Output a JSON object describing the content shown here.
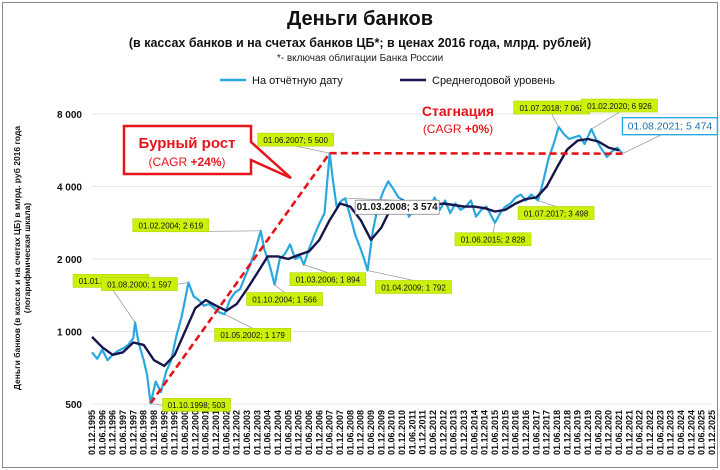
{
  "title": "Деньги банков",
  "subtitle": "(в кассах банков и на счетах банков ЦБ*; в ценах 2016 года, млрд. рублей)",
  "subnote": "*- включая облигации Банка России",
  "ylabel_lines": [
    "Деньги банков (в кассах и на счетах ЦБ) в млрд. руб 2016 года",
    "(логарифмическая шкала)"
  ],
  "legend": {
    "series1": "На отчётную дату",
    "series2": "Среднегодовой уровень"
  },
  "text_boxes": {
    "boom_title": "Бурный рост",
    "boom_cagr_pre": "(CAGR ",
    "boom_cagr_val": "+24%",
    "boom_cagr_post": ")",
    "stag_title": "Стагнация",
    "stag_cagr_pre": "(CAGR ",
    "stag_cagr_val": "+0%",
    "stag_cagr_post": ")"
  },
  "colors": {
    "series1": "#29a8e0",
    "series2": "#16164d",
    "trend": "#e8141b",
    "label_fill": "#ccf00a"
  },
  "chart_data": {
    "type": "line",
    "yscale": "log",
    "ylim": [
      500,
      9500
    ],
    "yticks": [
      500,
      1000,
      2000,
      4000,
      8000
    ],
    "ytick_labels": [
      "500",
      "1 000",
      "2 000",
      "4 000",
      "8 000"
    ],
    "xlim": [
      "1995-12-01",
      "2025-12-01"
    ],
    "xtick_labels": [
      "01.12.1995",
      "01.06.1996",
      "01.12.1996",
      "01.06.1997",
      "01.12.1997",
      "01.06.1998",
      "01.12.1998",
      "01.06.1999",
      "01.12.1999",
      "01.06.2000",
      "01.12.2000",
      "01.06.2001",
      "01.12.2001",
      "01.06.2002",
      "01.12.2002",
      "01.06.2003",
      "01.12.2003",
      "01.06.2004",
      "01.12.2004",
      "01.06.2005",
      "01.12.2005",
      "01.06.2006",
      "01.12.2006",
      "01.06.2007",
      "01.12.2007",
      "01.06.2008",
      "01.12.2008",
      "01.06.2009",
      "01.12.2009",
      "01.06.2010",
      "01.12.2010",
      "01.06.2011",
      "01.12.2011",
      "01.06.2012",
      "01.12.2012",
      "01.06.2013",
      "01.12.2013",
      "01.06.2014",
      "01.12.2014",
      "01.06.2015",
      "01.12.2015",
      "01.06.2016",
      "01.12.2016",
      "01.06.2017",
      "01.12.2017",
      "01.06.2018",
      "01.12.2018",
      "01.06.2019",
      "01.12.2019",
      "01.06.2020",
      "01.12.2020",
      "01.06.2021",
      "01.12.2021",
      "01.06.2022",
      "01.12.2022",
      "01.06.2023",
      "01.12.2023",
      "01.06.2024",
      "01.12.2024",
      "01.06.2025",
      "01.12.2025"
    ],
    "series": [
      {
        "name": "На отчётную дату",
        "points": [
          [
            "1995-12-01",
            820
          ],
          [
            "1996-03-01",
            770
          ],
          [
            "1996-06-01",
            840
          ],
          [
            "1996-09-01",
            760
          ],
          [
            "1996-12-01",
            800
          ],
          [
            "1997-03-01",
            830
          ],
          [
            "1997-06-01",
            850
          ],
          [
            "1997-09-01",
            880
          ],
          [
            "1997-12-01",
            940
          ],
          [
            "1998-01-01",
            1091
          ],
          [
            "1998-03-01",
            900
          ],
          [
            "1998-06-01",
            760
          ],
          [
            "1998-08-01",
            660
          ],
          [
            "1998-10-01",
            503
          ],
          [
            "1999-01-01",
            620
          ],
          [
            "1999-04-01",
            560
          ],
          [
            "1999-07-01",
            680
          ],
          [
            "1999-10-01",
            760
          ],
          [
            "2000-01-01",
            960
          ],
          [
            "2000-04-01",
            1150
          ],
          [
            "2000-06-01",
            1350
          ],
          [
            "2000-08-01",
            1597
          ],
          [
            "2000-11-01",
            1400
          ],
          [
            "2001-02-01",
            1350
          ],
          [
            "2001-05-01",
            1280
          ],
          [
            "2001-08-01",
            1300
          ],
          [
            "2001-11-01",
            1250
          ],
          [
            "2002-02-01",
            1200
          ],
          [
            "2002-05-01",
            1179
          ],
          [
            "2002-08-01",
            1350
          ],
          [
            "2002-11-01",
            1450
          ],
          [
            "2003-02-01",
            1500
          ],
          [
            "2003-05-01",
            1700
          ],
          [
            "2003-08-01",
            1900
          ],
          [
            "2003-11-01",
            2200
          ],
          [
            "2004-02-01",
            2619
          ],
          [
            "2004-04-01",
            2200
          ],
          [
            "2004-07-01",
            1900
          ],
          [
            "2004-10-01",
            1566
          ],
          [
            "2005-01-01",
            2000
          ],
          [
            "2005-04-01",
            2100
          ],
          [
            "2005-07-01",
            2300
          ],
          [
            "2005-10-01",
            2000
          ],
          [
            "2006-01-01",
            2050
          ],
          [
            "2006-03-01",
            1894
          ],
          [
            "2006-06-01",
            2200
          ],
          [
            "2006-09-01",
            2500
          ],
          [
            "2006-12-01",
            2800
          ],
          [
            "2007-03-01",
            3100
          ],
          [
            "2007-06-01",
            5500
          ],
          [
            "2007-08-01",
            4200
          ],
          [
            "2007-10-01",
            3300
          ],
          [
            "2008-01-01",
            3500
          ],
          [
            "2008-03-01",
            3574
          ],
          [
            "2008-06-01",
            3000
          ],
          [
            "2008-09-01",
            2500
          ],
          [
            "2008-12-01",
            2200
          ],
          [
            "2009-02-01",
            2000
          ],
          [
            "2009-04-01",
            1792
          ],
          [
            "2009-07-01",
            2600
          ],
          [
            "2009-10-01",
            3300
          ],
          [
            "2010-01-01",
            3800
          ],
          [
            "2010-04-01",
            4200
          ],
          [
            "2010-07-01",
            3900
          ],
          [
            "2010-10-01",
            3600
          ],
          [
            "2011-01-01",
            3500
          ],
          [
            "2011-04-01",
            3000
          ],
          [
            "2011-07-01",
            3200
          ],
          [
            "2011-10-01",
            3400
          ],
          [
            "2012-01-01",
            3100
          ],
          [
            "2012-04-01",
            3300
          ],
          [
            "2012-07-01",
            3600
          ],
          [
            "2012-10-01",
            3200
          ],
          [
            "2013-01-01",
            3500
          ],
          [
            "2013-04-01",
            3100
          ],
          [
            "2013-07-01",
            3400
          ],
          [
            "2013-10-01",
            3200
          ],
          [
            "2014-01-01",
            3300
          ],
          [
            "2014-04-01",
            3500
          ],
          [
            "2014-07-01",
            3000
          ],
          [
            "2014-10-01",
            3200
          ],
          [
            "2015-01-01",
            3300
          ],
          [
            "2015-06-01",
            2828
          ],
          [
            "2015-09-01",
            3100
          ],
          [
            "2015-12-01",
            3300
          ],
          [
            "2016-03-01",
            3400
          ],
          [
            "2016-06-01",
            3600
          ],
          [
            "2016-09-01",
            3700
          ],
          [
            "2016-12-01",
            3500
          ],
          [
            "2017-03-01",
            3700
          ],
          [
            "2017-07-01",
            3498
          ],
          [
            "2017-10-01",
            4200
          ],
          [
            "2018-01-01",
            5200
          ],
          [
            "2018-04-01",
            6000
          ],
          [
            "2018-07-01",
            7062
          ],
          [
            "2018-10-01",
            6600
          ],
          [
            "2019-01-01",
            6300
          ],
          [
            "2019-04-01",
            6400
          ],
          [
            "2019-07-01",
            6500
          ],
          [
            "2019-10-01",
            6000
          ],
          [
            "2020-02-01",
            6926
          ],
          [
            "2020-05-01",
            6200
          ],
          [
            "2020-08-01",
            5700
          ],
          [
            "2020-11-01",
            5300
          ],
          [
            "2021-02-01",
            5600
          ],
          [
            "2021-05-01",
            5800
          ],
          [
            "2021-08-01",
            5474
          ]
        ]
      },
      {
        "name": "Среднегодовой уровень",
        "points": [
          [
            "1995-12-01",
            950
          ],
          [
            "1996-06-01",
            860
          ],
          [
            "1996-12-01",
            800
          ],
          [
            "1997-06-01",
            820
          ],
          [
            "1997-12-01",
            900
          ],
          [
            "1998-06-01",
            880
          ],
          [
            "1998-12-01",
            760
          ],
          [
            "1999-06-01",
            720
          ],
          [
            "1999-12-01",
            800
          ],
          [
            "2000-06-01",
            1000
          ],
          [
            "2000-12-01",
            1250
          ],
          [
            "2001-06-01",
            1350
          ],
          [
            "2001-12-01",
            1280
          ],
          [
            "2002-06-01",
            1220
          ],
          [
            "2002-12-01",
            1300
          ],
          [
            "2003-06-01",
            1500
          ],
          [
            "2003-12-01",
            1750
          ],
          [
            "2004-06-01",
            2050
          ],
          [
            "2004-12-01",
            2050
          ],
          [
            "2005-06-01",
            2000
          ],
          [
            "2005-12-01",
            2080
          ],
          [
            "2006-06-01",
            2150
          ],
          [
            "2006-12-01",
            2400
          ],
          [
            "2007-06-01",
            2900
          ],
          [
            "2007-12-01",
            3400
          ],
          [
            "2008-06-01",
            3300
          ],
          [
            "2008-12-01",
            2900
          ],
          [
            "2009-06-01",
            2400
          ],
          [
            "2009-12-01",
            2700
          ],
          [
            "2010-06-01",
            3300
          ],
          [
            "2010-12-01",
            3500
          ],
          [
            "2011-06-01",
            3400
          ],
          [
            "2011-12-01",
            3300
          ],
          [
            "2012-06-01",
            3350
          ],
          [
            "2012-12-01",
            3400
          ],
          [
            "2013-06-01",
            3350
          ],
          [
            "2013-12-01",
            3300
          ],
          [
            "2014-06-01",
            3300
          ],
          [
            "2014-12-01",
            3250
          ],
          [
            "2015-06-01",
            3150
          ],
          [
            "2015-12-01",
            3200
          ],
          [
            "2016-06-01",
            3400
          ],
          [
            "2016-12-01",
            3550
          ],
          [
            "2017-06-01",
            3600
          ],
          [
            "2017-12-01",
            4000
          ],
          [
            "2018-06-01",
            4800
          ],
          [
            "2018-12-01",
            5700
          ],
          [
            "2019-06-01",
            6200
          ],
          [
            "2019-12-01",
            6300
          ],
          [
            "2020-06-01",
            6150
          ],
          [
            "2020-12-01",
            5800
          ],
          [
            "2021-06-01",
            5650
          ]
        ]
      }
    ],
    "trendlines": [
      {
        "from": [
          "1998-10-01",
          503
        ],
        "to": [
          "2007-06-01",
          5500
        ]
      },
      {
        "from": [
          "2007-06-01",
          5500
        ],
        "to": [
          "2021-08-01",
          5474
        ]
      }
    ],
    "annotations": [
      {
        "text": "01.01.1998;  1 091",
        "date": "1998-01-01",
        "value": 1091
      },
      {
        "text": "01.10.1998;  503",
        "date": "1998-10-01",
        "value": 503
      },
      {
        "text": "01.08.2000;  1 597",
        "date": "2000-08-01",
        "value": 1597
      },
      {
        "text": "01.05.2002;  1 179",
        "date": "2002-05-01",
        "value": 1179
      },
      {
        "text": "01.02.2004;  2 619",
        "date": "2004-02-01",
        "value": 2619
      },
      {
        "text": "01.10.2004;  1 566",
        "date": "2004-10-01",
        "value": 1566
      },
      {
        "text": "01.03.2006;  1 894",
        "date": "2006-03-01",
        "value": 1894
      },
      {
        "text": "01.06.2007;  5 500",
        "date": "2007-06-01",
        "value": 5500
      },
      {
        "text": "01.03.2008;  3 574",
        "date": "2008-03-01",
        "value": 3574
      },
      {
        "text": "01.04.2009;  1 792",
        "date": "2009-04-01",
        "value": 1792
      },
      {
        "text": "01.06.2015;  2 828",
        "date": "2015-06-01",
        "value": 2828
      },
      {
        "text": "01.07.2017;  3 498",
        "date": "2017-07-01",
        "value": 3498
      },
      {
        "text": "01.07.2018;  7 062",
        "date": "2018-07-01",
        "value": 7062
      },
      {
        "text": "01.02.2020;  6 926",
        "date": "2020-02-01",
        "value": 6926
      },
      {
        "text": "01.08.2021;   5 474",
        "date": "2021-08-01",
        "value": 5474
      }
    ]
  }
}
